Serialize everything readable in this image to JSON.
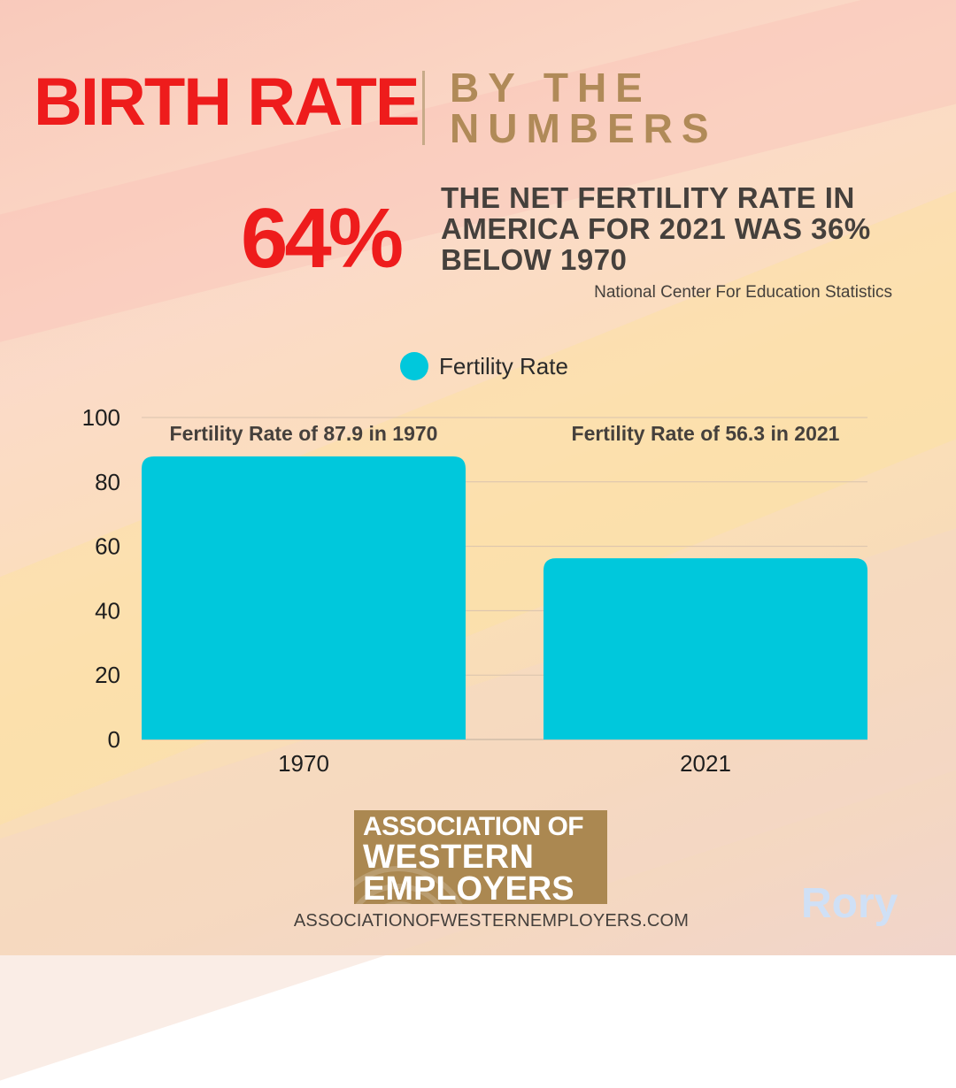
{
  "header": {
    "title": "BIRTH RATE",
    "subtitle_line1": "BY THE",
    "subtitle_line2": "NUMBERS"
  },
  "stat": {
    "value": "64%",
    "text_line1": "THE NET FERTILITY RATE IN",
    "text_line2": "AMERICA FOR 2021 WAS 36%",
    "text_line3": "BELOW 1970",
    "source": "National Center For Education Statistics"
  },
  "colors": {
    "accent_red": "#ee1c1c",
    "gold": "#ab8851",
    "bar": "#00c8dc",
    "text_dark": "#45403c"
  },
  "chart_data": {
    "type": "bar",
    "categories": [
      "1970",
      "2021"
    ],
    "series": [
      {
        "name": "Fertility Rate",
        "values": [
          87.9,
          56.3
        ]
      }
    ],
    "data_labels": [
      "Fertility Rate of 87.9 in 1970",
      "Fertility Rate of 56.3 in 2021"
    ],
    "ylim": [
      0,
      100
    ],
    "yticks": [
      0,
      20,
      40,
      60,
      80,
      100
    ],
    "grid": true,
    "legend": "top-center"
  },
  "footer": {
    "logo_line1": "ASSOCIATION OF",
    "logo_line2": "WESTERN",
    "logo_line3": "EMPLOYERS",
    "website": "ASSOCIATIONOFWESTERNEMPLOYERS.COM",
    "signature": "Rory"
  }
}
